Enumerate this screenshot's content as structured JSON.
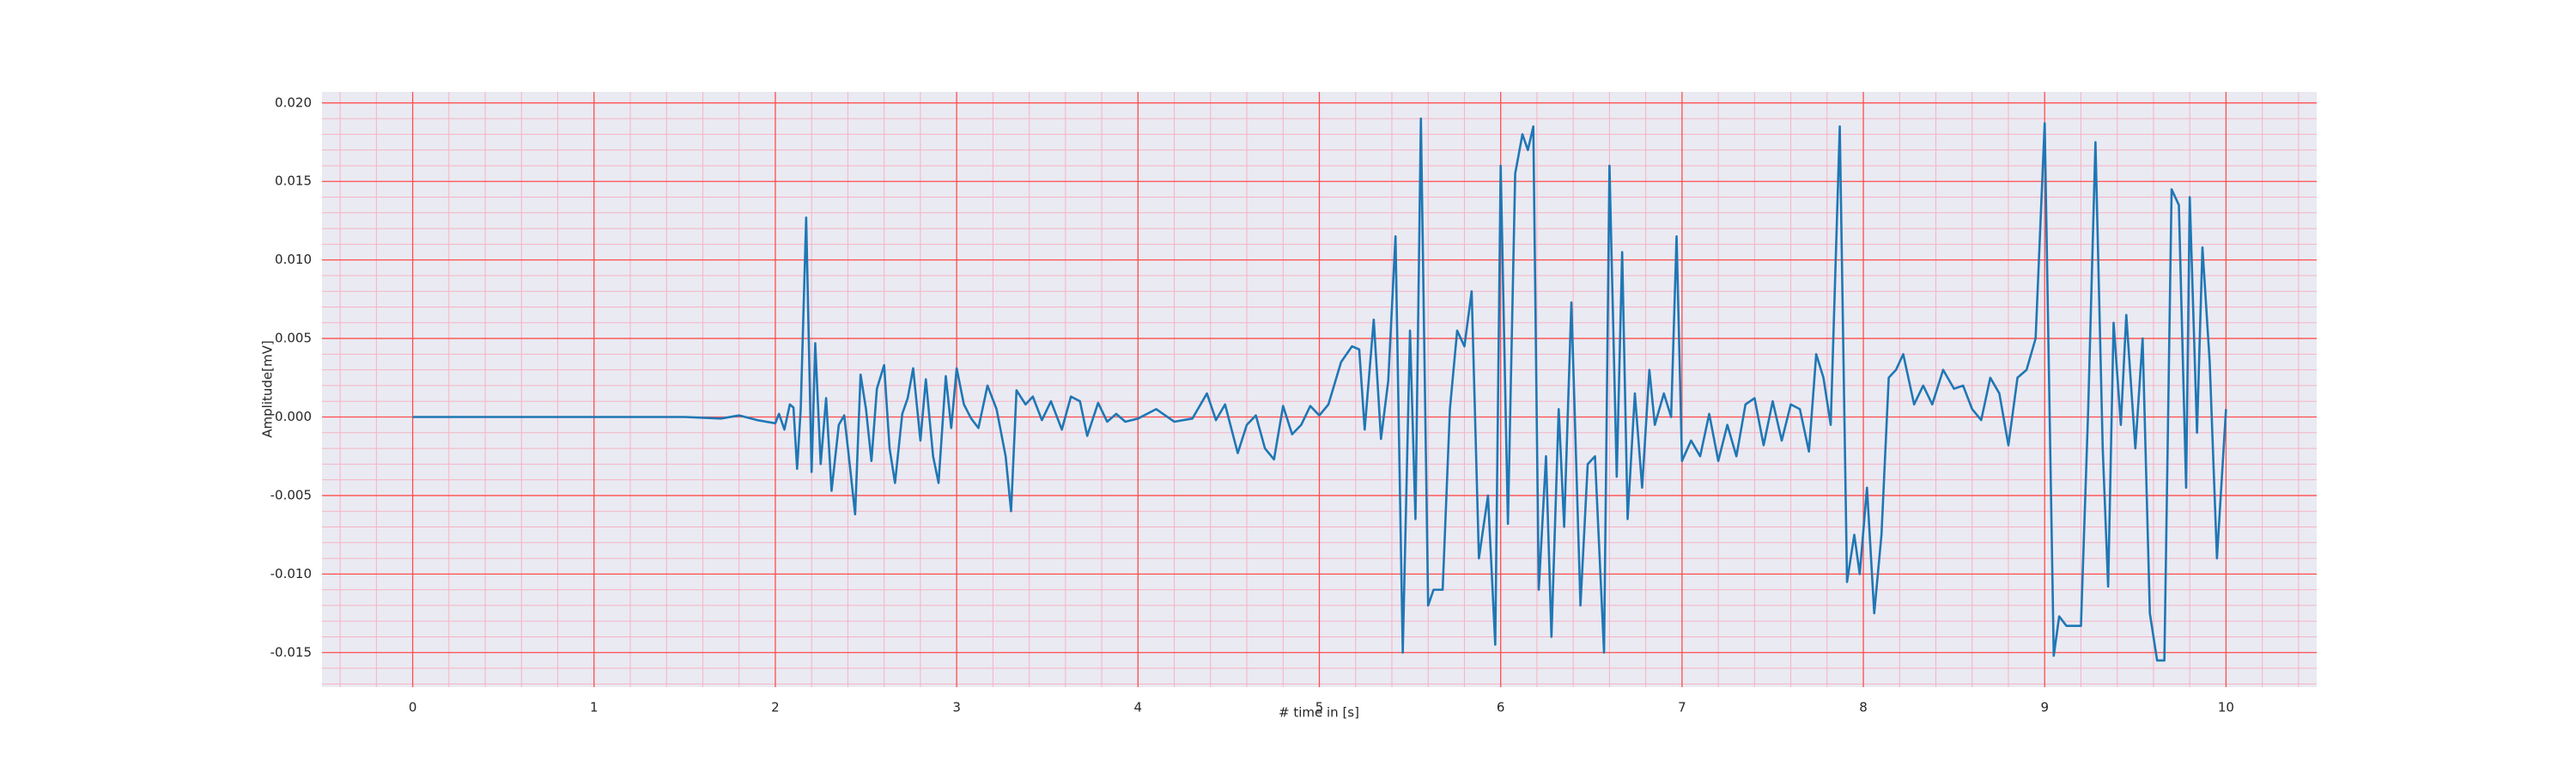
{
  "chart_data": {
    "type": "line",
    "xlabel": "# time in [s]",
    "ylabel": "Amplitude[mV]",
    "color": "#1f77b4",
    "background": "#eaeaf2",
    "grid": true,
    "grid_color": "#ff4d4d",
    "minor_grid_color": "#f5b3c4",
    "xlim": [
      -0.5,
      10.5
    ],
    "ylim": [
      -0.0172,
      0.0207
    ],
    "xticks": [
      0,
      1,
      2,
      3,
      4,
      5,
      6,
      7,
      8,
      9,
      10
    ],
    "yticks": [
      {
        "value": -0.015,
        "label": "-0.015"
      },
      {
        "value": -0.01,
        "label": "-0.010"
      },
      {
        "value": -0.005,
        "label": "-0.005"
      },
      {
        "value": 0,
        "label": "0.000"
      },
      {
        "value": 0.005,
        "label": "0.005"
      },
      {
        "value": 0.01,
        "label": "0.010"
      },
      {
        "value": 0.015,
        "label": "0.015"
      },
      {
        "value": 0.02,
        "label": "0.020"
      }
    ],
    "xminor": [
      -0.4,
      -0.2,
      0.2,
      0.4,
      0.6,
      0.8,
      1.2,
      1.4,
      1.6,
      1.8,
      2.2,
      2.4,
      2.6,
      2.8,
      3.2,
      3.4,
      3.6,
      3.8,
      4.2,
      4.4,
      4.6,
      4.8,
      5.2,
      5.4,
      5.6,
      5.8,
      6.2,
      6.4,
      6.6,
      6.8,
      7.2,
      7.4,
      7.6,
      7.8,
      8.2,
      8.4,
      8.6,
      8.8,
      9.2,
      9.4,
      9.6,
      9.8,
      10.2,
      10.4
    ],
    "yminor": [
      -0.017,
      -0.016,
      -0.014,
      -0.013,
      -0.012,
      -0.011,
      -0.009,
      -0.008,
      -0.007,
      -0.006,
      -0.004,
      -0.003,
      -0.002,
      -0.001,
      0.001,
      0.002,
      0.003,
      0.004,
      0.006,
      0.007,
      0.008,
      0.009,
      0.011,
      0.012,
      0.013,
      0.014,
      0.016,
      0.017,
      0.018,
      0.019
    ],
    "x": [
      0,
      0.5,
      1.0,
      1.5,
      1.7,
      1.8,
      1.9,
      2.0,
      2.02,
      2.05,
      2.08,
      2.1,
      2.12,
      2.14,
      2.17,
      2.2,
      2.22,
      2.25,
      2.28,
      2.31,
      2.35,
      2.38,
      2.41,
      2.44,
      2.47,
      2.5,
      2.53,
      2.56,
      2.6,
      2.63,
      2.66,
      2.7,
      2.73,
      2.76,
      2.8,
      2.83,
      2.87,
      2.9,
      2.94,
      2.97,
      3.0,
      3.04,
      3.08,
      3.12,
      3.17,
      3.22,
      3.27,
      3.3,
      3.33,
      3.38,
      3.42,
      3.47,
      3.52,
      3.58,
      3.63,
      3.68,
      3.72,
      3.78,
      3.83,
      3.88,
      3.93,
      4.0,
      4.1,
      4.2,
      4.3,
      4.38,
      4.43,
      4.48,
      4.55,
      4.6,
      4.65,
      4.7,
      4.75,
      4.8,
      4.85,
      4.9,
      4.95,
      5.0,
      5.05,
      5.12,
      5.18,
      5.22,
      5.25,
      5.3,
      5.34,
      5.38,
      5.42,
      5.46,
      5.5,
      5.53,
      5.56,
      5.6,
      5.63,
      5.68,
      5.72,
      5.76,
      5.8,
      5.84,
      5.88,
      5.93,
      5.97,
      6.0,
      6.04,
      6.08,
      6.12,
      6.15,
      6.18,
      6.21,
      6.25,
      6.28,
      6.32,
      6.35,
      6.39,
      6.44,
      6.48,
      6.52,
      6.57,
      6.6,
      6.64,
      6.67,
      6.7,
      6.74,
      6.78,
      6.82,
      6.85,
      6.9,
      6.94,
      6.97,
      7.0,
      7.05,
      7.1,
      7.15,
      7.2,
      7.25,
      7.3,
      7.35,
      7.4,
      7.45,
      7.5,
      7.55,
      7.6,
      7.65,
      7.7,
      7.74,
      7.78,
      7.82,
      7.87,
      7.91,
      7.95,
      7.98,
      8.02,
      8.06,
      8.1,
      8.14,
      8.18,
      8.22,
      8.28,
      8.33,
      8.38,
      8.44,
      8.5,
      8.55,
      8.6,
      8.65,
      8.7,
      8.75,
      8.8,
      8.85,
      8.9,
      8.95,
      9.0,
      9.05,
      9.08,
      9.12,
      9.2,
      9.24,
      9.28,
      9.32,
      9.35,
      9.38,
      9.42,
      9.45,
      9.5,
      9.54,
      9.58,
      9.62,
      9.66,
      9.7,
      9.74,
      9.78,
      9.8,
      9.84,
      9.87,
      9.91,
      9.95,
      10.0
    ],
    "values": [
      0,
      0,
      0,
      0,
      -0.0001,
      0.0001,
      -0.0002,
      -0.0004,
      0.0002,
      -0.0008,
      0.0008,
      0.0006,
      -0.0033,
      0.0005,
      0.0127,
      -0.0035,
      0.0047,
      -0.003,
      0.0012,
      -0.0047,
      -0.0005,
      0.0001,
      -0.003,
      -0.0062,
      0.0027,
      0.0005,
      -0.0028,
      0.0018,
      0.0033,
      -0.002,
      -0.0042,
      0.0002,
      0.0012,
      0.0031,
      -0.0015,
      0.0024,
      -0.0025,
      -0.0042,
      0.0026,
      -0.0007,
      0.0031,
      0.0008,
      -0.0001,
      -0.0007,
      0.002,
      0.0005,
      -0.0025,
      -0.006,
      0.0017,
      0.0008,
      0.0013,
      -0.0002,
      0.001,
      -0.0008,
      0.0013,
      0.001,
      -0.0012,
      0.0009,
      -0.0003,
      0.0002,
      -0.0003,
      -0.0001,
      0.0005,
      -0.0003,
      -0.0001,
      0.0015,
      -0.0002,
      0.0008,
      -0.0023,
      -0.0005,
      0.0001,
      -0.002,
      -0.0027,
      0.0007,
      -0.0011,
      -0.0005,
      0.0007,
      0.0001,
      0.0008,
      0.0035,
      0.0045,
      0.0043,
      -0.0008,
      0.0062,
      -0.0014,
      0.0023,
      0.0115,
      -0.015,
      0.0055,
      -0.0065,
      0.019,
      -0.012,
      -0.011,
      -0.011,
      0.0005,
      0.0055,
      0.0045,
      0.008,
      -0.009,
      -0.005,
      -0.0145,
      0.016,
      -0.0068,
      0.0155,
      0.018,
      0.017,
      0.0185,
      -0.011,
      -0.0025,
      -0.014,
      0.0005,
      -0.007,
      0.0073,
      -0.012,
      -0.003,
      -0.0025,
      -0.015,
      0.016,
      -0.0038,
      0.0105,
      -0.0065,
      0.0015,
      -0.0045,
      0.003,
      -0.0005,
      0.0015,
      0,
      0.0115,
      -0.0028,
      -0.0015,
      -0.0025,
      0.0002,
      -0.0028,
      -0.0005,
      -0.0025,
      0.0008,
      0.0012,
      -0.0018,
      0.001,
      -0.0015,
      0.0008,
      0.0005,
      -0.0022,
      0.004,
      0.0025,
      -0.0005,
      0.0185,
      -0.0105,
      -0.0075,
      -0.01,
      -0.0045,
      -0.0125,
      -0.0075,
      0.0025,
      0.003,
      0.004,
      0.0008,
      0.002,
      0.0008,
      0.003,
      0.0018,
      0.002,
      0.0005,
      -0.0002,
      0.0025,
      0.0015,
      -0.0018,
      0.0025,
      0.003,
      0.005,
      0.0187,
      -0.0152,
      -0.0127,
      -0.0133,
      -0.0133,
      0.0005,
      0.0175,
      -0.002,
      -0.0108,
      0.006,
      -0.0005,
      0.0065,
      -0.002,
      0.005,
      -0.0125,
      -0.0155,
      -0.0155,
      0.0145,
      0.0135,
      -0.0045,
      0.014,
      -0.001,
      0.0108,
      0.0035,
      -0.009,
      0.0005
    ]
  }
}
